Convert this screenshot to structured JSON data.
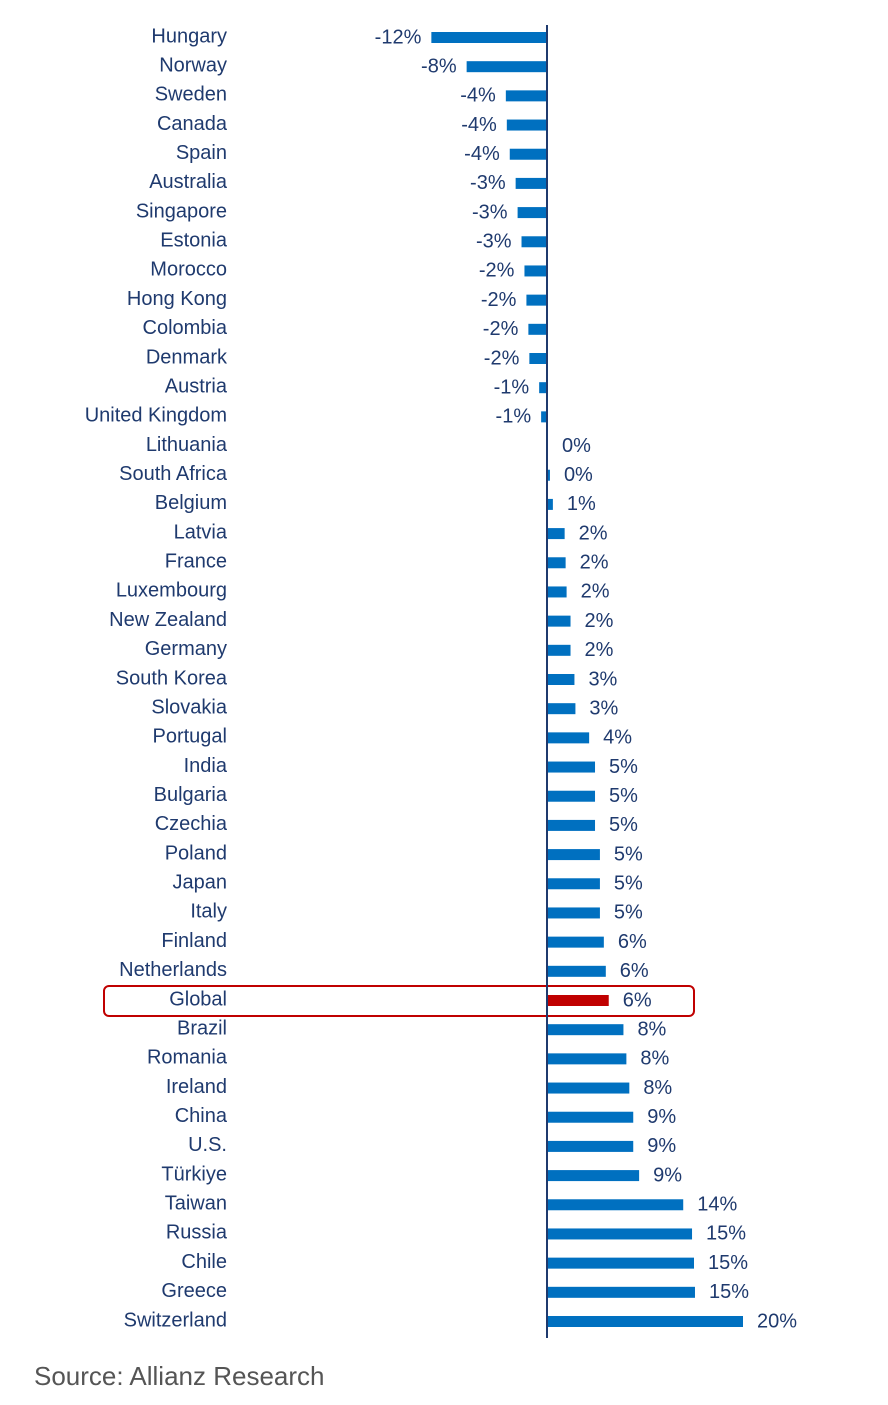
{
  "chart_data": {
    "type": "bar",
    "orientation": "horizontal",
    "categories": [
      "Hungary",
      "Norway",
      "Sweden",
      "Canada",
      "Spain",
      "Australia",
      "Singapore",
      "Estonia",
      "Morocco",
      "Hong Kong",
      "Colombia",
      "Denmark",
      "Austria",
      "United Kingdom",
      "Lithuania",
      "South Africa",
      "Belgium",
      "Latvia",
      "France",
      "Luxembourg",
      "New Zealand",
      "Germany",
      "South Korea",
      "Slovakia",
      "Portugal",
      "India",
      "Bulgaria",
      "Czechia",
      "Poland",
      "Japan",
      "Italy",
      "Finland",
      "Netherlands",
      "Global",
      "Brazil",
      "Romania",
      "Ireland",
      "China",
      "U.S.",
      "Türkiye",
      "Taiwan",
      "Russia",
      "Chile",
      "Greece",
      "Switzerland"
    ],
    "values": [
      -11.8,
      -8.2,
      -4.2,
      -4.1,
      -3.8,
      -3.2,
      -3.0,
      -2.6,
      -2.3,
      -2.1,
      -1.9,
      -1.8,
      -0.8,
      -0.6,
      0.1,
      0.3,
      0.6,
      1.8,
      1.9,
      2.0,
      2.4,
      2.4,
      2.8,
      2.9,
      4.3,
      4.9,
      4.9,
      4.9,
      5.4,
      5.4,
      5.4,
      5.8,
      6.0,
      6.3,
      7.8,
      8.1,
      8.4,
      8.8,
      8.8,
      9.4,
      13.9,
      14.8,
      15.0,
      15.1,
      20.0
    ],
    "value_labels": [
      "-12%",
      "-8%",
      "-4%",
      "-4%",
      "-4%",
      "-3%",
      "-3%",
      "-3%",
      "-2%",
      "-2%",
      "-2%",
      "-2%",
      "-1%",
      "-1%",
      "0%",
      "0%",
      "1%",
      "2%",
      "2%",
      "2%",
      "2%",
      "2%",
      "3%",
      "3%",
      "4%",
      "5%",
      "5%",
      "5%",
      "5%",
      "5%",
      "5%",
      "6%",
      "6%",
      "6%",
      "8%",
      "8%",
      "8%",
      "9%",
      "9%",
      "9%",
      "14%",
      "15%",
      "15%",
      "15%",
      "20%"
    ],
    "colors": [
      "#0070c0",
      "#0070c0",
      "#0070c0",
      "#0070c0",
      "#0070c0",
      "#0070c0",
      "#0070c0",
      "#0070c0",
      "#0070c0",
      "#0070c0",
      "#0070c0",
      "#0070c0",
      "#0070c0",
      "#0070c0",
      "#0070c0",
      "#0070c0",
      "#0070c0",
      "#0070c0",
      "#0070c0",
      "#0070c0",
      "#0070c0",
      "#0070c0",
      "#0070c0",
      "#0070c0",
      "#0070c0",
      "#0070c0",
      "#0070c0",
      "#0070c0",
      "#0070c0",
      "#0070c0",
      "#0070c0",
      "#0070c0",
      "#0070c0",
      "#c00000",
      "#0070c0",
      "#0070c0",
      "#0070c0",
      "#0070c0",
      "#0070c0",
      "#0070c0",
      "#0070c0",
      "#0070c0",
      "#0070c0",
      "#0070c0",
      "#0070c0"
    ],
    "source": "Source: Allianz Research"
  }
}
